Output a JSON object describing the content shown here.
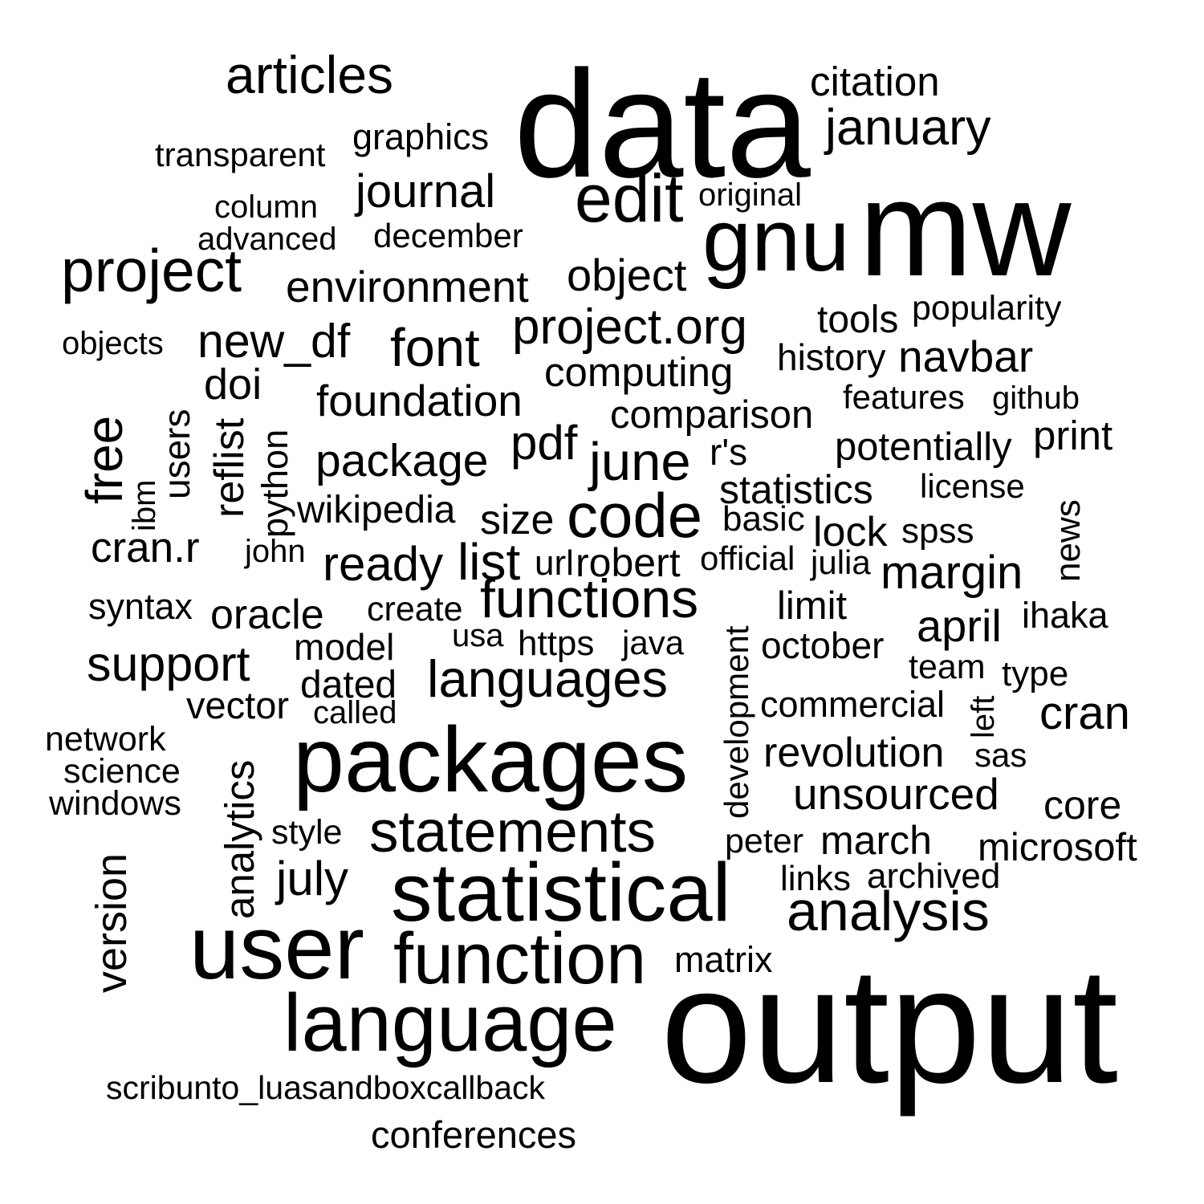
{
  "word_cloud": {
    "text_color": "#000000",
    "background_color": "#ffffff",
    "words": [
      {
        "text": "data"
      },
      {
        "text": "mw"
      },
      {
        "text": "output"
      },
      {
        "text": "packages"
      },
      {
        "text": "user"
      },
      {
        "text": "statistical"
      },
      {
        "text": "language"
      },
      {
        "text": "function"
      },
      {
        "text": "analysis"
      },
      {
        "text": "statements"
      },
      {
        "text": "languages"
      },
      {
        "text": "functions"
      },
      {
        "text": "code"
      },
      {
        "text": "gnu"
      },
      {
        "text": "edit"
      },
      {
        "text": "project"
      },
      {
        "text": "articles"
      },
      {
        "text": "january"
      },
      {
        "text": "citation"
      },
      {
        "text": "graphics"
      },
      {
        "text": "transparent"
      },
      {
        "text": "journal"
      },
      {
        "text": "original"
      },
      {
        "text": "column"
      },
      {
        "text": "advanced"
      },
      {
        "text": "december"
      },
      {
        "text": "environment"
      },
      {
        "text": "object"
      },
      {
        "text": "project.org"
      },
      {
        "text": "tools"
      },
      {
        "text": "popularity"
      },
      {
        "text": "objects"
      },
      {
        "text": "new_df"
      },
      {
        "text": "font"
      },
      {
        "text": "history"
      },
      {
        "text": "navbar"
      },
      {
        "text": "computing"
      },
      {
        "text": "doi"
      },
      {
        "text": "foundation"
      },
      {
        "text": "features"
      },
      {
        "text": "github"
      },
      {
        "text": "comparison"
      },
      {
        "text": "free"
      },
      {
        "text": "users"
      },
      {
        "text": "reflist"
      },
      {
        "text": "python"
      },
      {
        "text": "ibm"
      },
      {
        "text": "pdf"
      },
      {
        "text": "june"
      },
      {
        "text": "r's"
      },
      {
        "text": "potentially"
      },
      {
        "text": "print"
      },
      {
        "text": "package"
      },
      {
        "text": "statistics"
      },
      {
        "text": "license"
      },
      {
        "text": "wikipedia"
      },
      {
        "text": "size"
      },
      {
        "text": "basic"
      },
      {
        "text": "news"
      },
      {
        "text": "lock"
      },
      {
        "text": "spss"
      },
      {
        "text": "cran.r"
      },
      {
        "text": "john"
      },
      {
        "text": "ready"
      },
      {
        "text": "list"
      },
      {
        "text": "url"
      },
      {
        "text": "robert"
      },
      {
        "text": "official"
      },
      {
        "text": "julia"
      },
      {
        "text": "margin"
      },
      {
        "text": "syntax"
      },
      {
        "text": "oracle"
      },
      {
        "text": "create"
      },
      {
        "text": "development"
      },
      {
        "text": "limit"
      },
      {
        "text": "april"
      },
      {
        "text": "ihaka"
      },
      {
        "text": "usa"
      },
      {
        "text": "https"
      },
      {
        "text": "java"
      },
      {
        "text": "model"
      },
      {
        "text": "october"
      },
      {
        "text": "support"
      },
      {
        "text": "team"
      },
      {
        "text": "type"
      },
      {
        "text": "dated"
      },
      {
        "text": "vector"
      },
      {
        "text": "called"
      },
      {
        "text": "commercial"
      },
      {
        "text": "left"
      },
      {
        "text": "cran"
      },
      {
        "text": "network"
      },
      {
        "text": "analytics"
      },
      {
        "text": "revolution"
      },
      {
        "text": "sas"
      },
      {
        "text": "science"
      },
      {
        "text": "windows"
      },
      {
        "text": "unsourced"
      },
      {
        "text": "core"
      },
      {
        "text": "style"
      },
      {
        "text": "peter"
      },
      {
        "text": "march"
      },
      {
        "text": "microsoft"
      },
      {
        "text": "version"
      },
      {
        "text": "july"
      },
      {
        "text": "links"
      },
      {
        "text": "archived"
      },
      {
        "text": "matrix"
      },
      {
        "text": "scribunto_luasandboxcallback"
      },
      {
        "text": "conferences"
      }
    ]
  }
}
